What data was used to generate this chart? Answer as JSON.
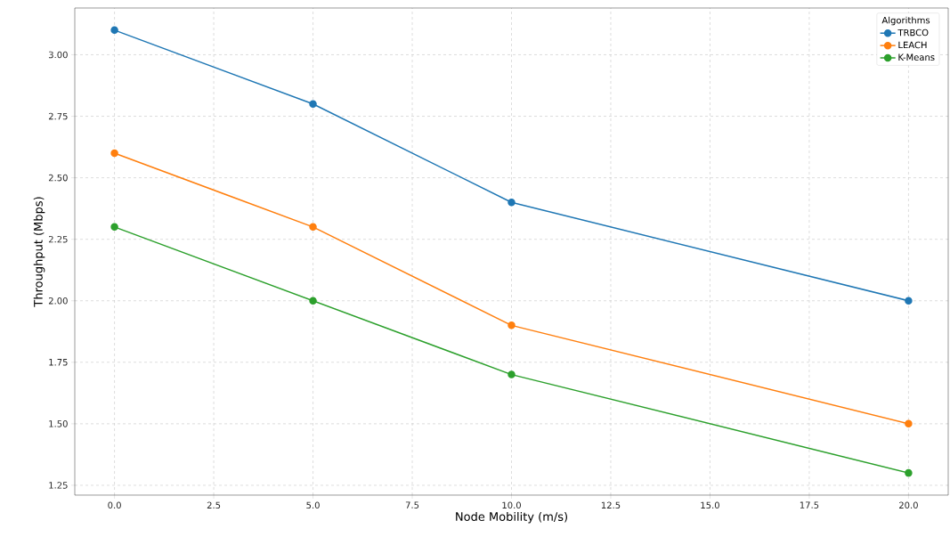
{
  "chart_data": {
    "type": "line",
    "xlabel": "Node Mobility (m/s)",
    "ylabel": "Throughput (Mbps)",
    "legend_title": "Algorithms",
    "x": [
      0,
      5,
      10,
      20
    ],
    "series": [
      {
        "name": "TRBCO",
        "color": "#1f77b4",
        "values": [
          3.1,
          2.8,
          2.4,
          2.0
        ]
      },
      {
        "name": "LEACH",
        "color": "#ff7f0e",
        "values": [
          2.6,
          2.3,
          1.9,
          1.5
        ]
      },
      {
        "name": "K-Means",
        "color": "#2ca02c",
        "values": [
          2.3,
          2.0,
          1.7,
          1.3
        ]
      }
    ],
    "xlim": [
      -1,
      21
    ],
    "ylim": [
      1.21,
      3.19
    ],
    "xticks": [
      {
        "value": 0,
        "label": "0.0"
      },
      {
        "value": 2.5,
        "label": "2.5"
      },
      {
        "value": 5,
        "label": "5.0"
      },
      {
        "value": 7.5,
        "label": "7.5"
      },
      {
        "value": 10,
        "label": "10.0"
      },
      {
        "value": 12.5,
        "label": "12.5"
      },
      {
        "value": 15,
        "label": "15.0"
      },
      {
        "value": 17.5,
        "label": "17.5"
      },
      {
        "value": 20,
        "label": "20.0"
      }
    ],
    "yticks": [
      {
        "value": 1.25,
        "label": "1.25"
      },
      {
        "value": 1.5,
        "label": "1.50"
      },
      {
        "value": 1.75,
        "label": "1.75"
      },
      {
        "value": 2,
        "label": "2.00"
      },
      {
        "value": 2.25,
        "label": "2.25"
      },
      {
        "value": 2.5,
        "label": "2.50"
      },
      {
        "value": 2.75,
        "label": "2.75"
      },
      {
        "value": 3,
        "label": "3.00"
      }
    ],
    "grid": true,
    "legend": "top right",
    "marker": "circle",
    "line_style": "solid"
  }
}
